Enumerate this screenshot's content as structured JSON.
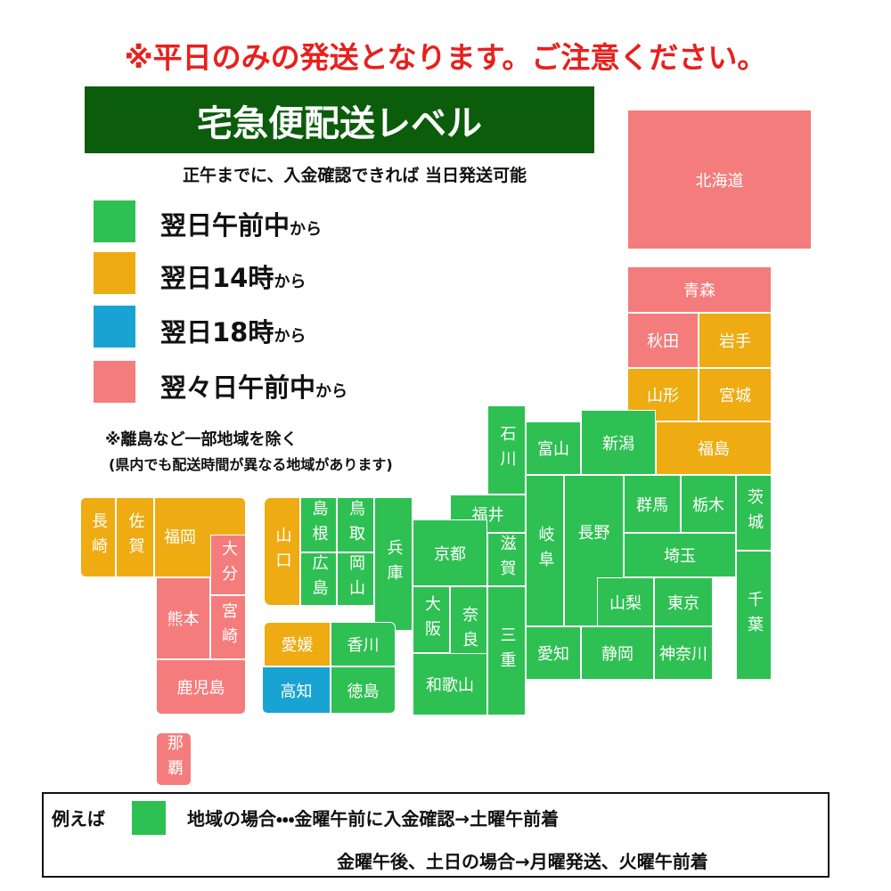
{
  "notice": "※平日のみの発送となります。ご注意ください。",
  "title": "宅急便配送レベル",
  "subtitle": "正午までに、入金確認できれば 当日発送可能",
  "legend": [
    {
      "label": "翌日午前中",
      "suffix": "から",
      "color": "#2ec052"
    },
    {
      "label": "翌日14時",
      "suffix": "から",
      "color": "#eeab12"
    },
    {
      "label": "翌日18時",
      "suffix": "から",
      "color": "#19a3d2"
    },
    {
      "label": "翌々日午前中",
      "suffix": "から",
      "color": "#f47c7c"
    }
  ],
  "notes": [
    "※離島など一部地域を除く",
    "(県内でも配送時間が異なる地域があります)"
  ],
  "regions": [
    {
      "name": "北海道",
      "color": "#f47c7c"
    },
    {
      "name": "青森",
      "color": "#f47c7c"
    },
    {
      "name": "秋田",
      "color": "#f47c7c"
    },
    {
      "name": "岩手",
      "color": "#eeab12"
    },
    {
      "name": "山形",
      "color": "#eeab12"
    },
    {
      "name": "宮城",
      "color": "#eeab12"
    },
    {
      "name": "福島",
      "color": "#eeab12"
    },
    {
      "name": "新潟",
      "color": "#2ec052"
    },
    {
      "name": "富山",
      "color": "#2ec052"
    },
    {
      "name": "石川",
      "color": "#2ec052"
    },
    {
      "name": "福井",
      "color": "#2ec052"
    },
    {
      "name": "滋賀",
      "color": "#2ec052"
    },
    {
      "name": "岐阜",
      "color": "#2ec052"
    },
    {
      "name": "長野",
      "color": "#2ec052"
    },
    {
      "name": "群馬",
      "color": "#2ec052"
    },
    {
      "name": "栃木",
      "color": "#2ec052"
    },
    {
      "name": "茨城",
      "color": "#2ec052"
    },
    {
      "name": "埼玉",
      "color": "#2ec052"
    },
    {
      "name": "千葉",
      "color": "#2ec052"
    },
    {
      "name": "山梨",
      "color": "#2ec052"
    },
    {
      "name": "東京",
      "color": "#2ec052"
    },
    {
      "name": "神奈川",
      "color": "#2ec052"
    },
    {
      "name": "静岡",
      "color": "#2ec052"
    },
    {
      "name": "愛知",
      "color": "#2ec052"
    },
    {
      "name": "三重",
      "color": "#2ec052"
    },
    {
      "name": "奈良",
      "color": "#2ec052"
    },
    {
      "name": "大阪",
      "color": "#2ec052"
    },
    {
      "name": "和歌山",
      "color": "#2ec052"
    },
    {
      "name": "京都",
      "color": "#2ec052"
    },
    {
      "name": "兵庫",
      "color": "#2ec052"
    },
    {
      "name": "鳥取",
      "color": "#2ec052"
    },
    {
      "name": "岡山",
      "color": "#2ec052"
    },
    {
      "name": "島根",
      "color": "#2ec052"
    },
    {
      "name": "広島",
      "color": "#2ec052"
    },
    {
      "name": "山口",
      "color": "#eeab12"
    },
    {
      "name": "愛媛",
      "color": "#eeab12"
    },
    {
      "name": "香川",
      "color": "#2ec052"
    },
    {
      "name": "高知",
      "color": "#19a3d2"
    },
    {
      "name": "徳島",
      "color": "#2ec052"
    },
    {
      "name": "長崎",
      "color": "#eeab12"
    },
    {
      "name": "佐賀",
      "color": "#eeab12"
    },
    {
      "name": "福岡",
      "color": "#eeab12"
    },
    {
      "name": "大分",
      "color": "#f47c7c"
    },
    {
      "name": "熊本",
      "color": "#f47c7c"
    },
    {
      "name": "宮崎",
      "color": "#f47c7c"
    },
    {
      "name": "鹿児島",
      "color": "#f47c7c"
    },
    {
      "name": "那覇",
      "color": "#f47c7c"
    }
  ],
  "example": {
    "lead": "例えば",
    "color": "#2ec052",
    "line1": "地域の場合・・・金曜午前に入金確認→土曜午前着",
    "line2": "金曜午後、土日の場合→月曜発送、火曜午前着"
  }
}
